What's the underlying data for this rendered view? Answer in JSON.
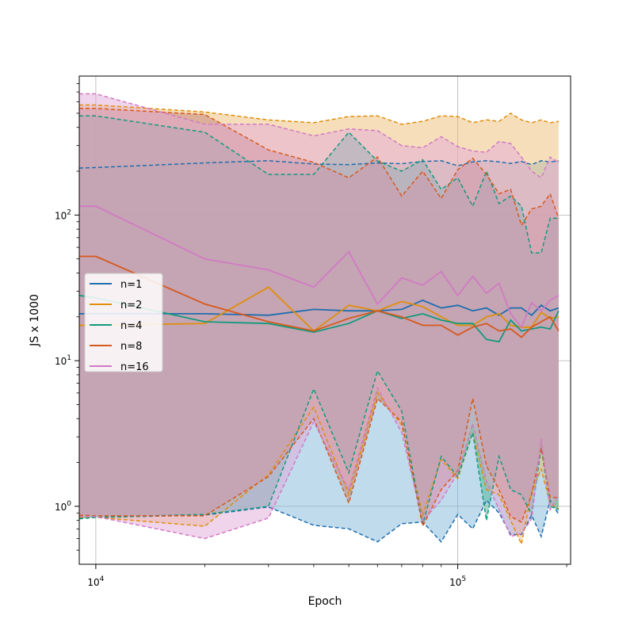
{
  "chart_data": {
    "type": "line",
    "title": "",
    "xlabel": "Epoch",
    "ylabel": "JS x 1000",
    "xscale": "log",
    "yscale": "log",
    "xlim": [
      9000,
      205000
    ],
    "ylim": [
      0.4,
      900
    ],
    "grid": true,
    "legend_position": "center-left",
    "x_ticks": [
      {
        "value": 10000,
        "base": "10",
        "exp": "4"
      },
      {
        "value": 100000,
        "base": "10",
        "exp": "5"
      }
    ],
    "y_ticks": [
      {
        "value": 1,
        "base": "10",
        "exp": "0"
      },
      {
        "value": 10,
        "base": "10",
        "exp": "1"
      },
      {
        "value": 100,
        "base": "10",
        "exp": "2"
      }
    ],
    "x": [
      9000,
      10000,
      20000,
      30000,
      40000,
      50000,
      60000,
      70000,
      80000,
      90000,
      100000,
      110000,
      120000,
      130000,
      140000,
      150000,
      160000,
      170000,
      180000,
      190000
    ],
    "series": [
      {
        "name": "n=1",
        "color": "#1f6eae",
        "fill": "#7fb8da",
        "mean": [
          21,
          21,
          21,
          20.5,
          22.5,
          22,
          22,
          22.5,
          26,
          23,
          24,
          22,
          23,
          20.5,
          23,
          23,
          20.5,
          24,
          22,
          23
        ],
        "upper": [
          210,
          212,
          228,
          236,
          224,
          222,
          228,
          225,
          233,
          236,
          218,
          232,
          236,
          232,
          226,
          233,
          222,
          236,
          232,
          235
        ],
        "lower": [
          0.83,
          0.84,
          0.87,
          0.99,
          0.74,
          0.7,
          0.57,
          0.76,
          0.78,
          0.57,
          0.88,
          0.7,
          1.1,
          0.9,
          0.64,
          0.64,
          0.87,
          0.62,
          1.1,
          0.88
        ]
      },
      {
        "name": "n=2",
        "color": "#e08e0b",
        "fill": "#edbe75",
        "mean": [
          17.5,
          17.5,
          18,
          32,
          16,
          24,
          22,
          25.5,
          23.5,
          20,
          17.5,
          17.5,
          20,
          21,
          17.5,
          17,
          17,
          21.5,
          19.5,
          20
        ],
        "upper": [
          570,
          570,
          510,
          450,
          430,
          475,
          480,
          420,
          440,
          480,
          475,
          430,
          450,
          440,
          500,
          450,
          430,
          450,
          430,
          440
        ],
        "lower": [
          0.84,
          0.84,
          0.73,
          1.65,
          4.8,
          1.2,
          6,
          3.6,
          0.87,
          2.1,
          1.55,
          3.2,
          1.3,
          1.2,
          0.8,
          0.55,
          1.25,
          1.8,
          1.05,
          0.95
        ]
      },
      {
        "name": "n=4",
        "color": "#129a7d",
        "fill": "#4fb29a",
        "mean": [
          28,
          27,
          18.5,
          18,
          15.7,
          18,
          22,
          19.5,
          21,
          19,
          18,
          18,
          14,
          13.5,
          19,
          16,
          16.5,
          17,
          16.5,
          22
        ],
        "upper": [
          480,
          480,
          370,
          190,
          190,
          370,
          235,
          200,
          240,
          150,
          180,
          115,
          200,
          120,
          135,
          115,
          55,
          55,
          95,
          95
        ],
        "lower": [
          0.82,
          0.84,
          0.88,
          1.0,
          6.4,
          1.7,
          8.5,
          4.5,
          0.75,
          2.2,
          1.6,
          3.2,
          0.8,
          2.2,
          1.3,
          1.2,
          0.88,
          2.5,
          1.0,
          0.95
        ]
      },
      {
        "name": "n=8",
        "color": "#d6591c",
        "fill": "#c08078",
        "mean": [
          52,
          52,
          24.5,
          18.5,
          16,
          19.5,
          22,
          20,
          17.5,
          17.5,
          15,
          17,
          18,
          16,
          16.5,
          14.5,
          17,
          18.5,
          20,
          16
        ],
        "upper": [
          540,
          540,
          490,
          280,
          230,
          180,
          250,
          135,
          200,
          130,
          205,
          245,
          190,
          140,
          150,
          85,
          110,
          115,
          140,
          95
        ],
        "lower": [
          0.87,
          0.86,
          0.86,
          1.6,
          4.0,
          1.05,
          5.5,
          3.8,
          0.73,
          1.3,
          1.75,
          5.5,
          1.9,
          1.3,
          0.85,
          0.78,
          1.2,
          2.5,
          1.15,
          1.15
        ]
      },
      {
        "name": "n=16",
        "color": "#d17ac4",
        "fill": "#e2aad8",
        "mean": [
          115,
          115,
          50,
          42,
          32,
          56,
          24.5,
          37,
          33,
          41,
          28,
          38,
          29,
          34,
          21,
          17,
          25,
          22,
          26,
          28
        ],
        "upper": [
          680,
          680,
          420,
          420,
          350,
          390,
          380,
          300,
          290,
          345,
          295,
          275,
          270,
          320,
          310,
          250,
          200,
          180,
          250,
          230
        ],
        "lower": [
          0.85,
          0.85,
          0.6,
          0.83,
          3.8,
          1.3,
          6.5,
          3.2,
          0.8,
          1.1,
          1.7,
          3.7,
          1.5,
          0.95,
          0.62,
          0.65,
          0.82,
          2.9,
          0.95,
          1.2
        ]
      }
    ]
  }
}
